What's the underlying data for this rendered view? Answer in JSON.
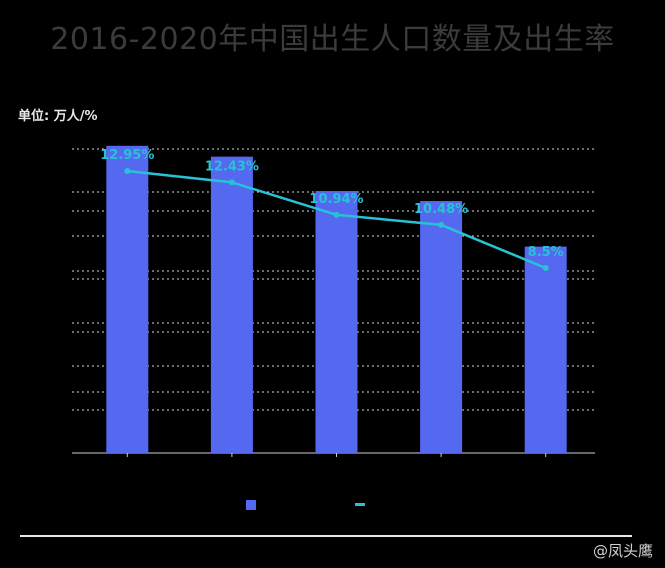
{
  "title": "2016-2020年中国出生人口数量及出生率",
  "unit_label": "单位: 万人/%",
  "watermark": "@凤头鹰",
  "colors": {
    "bar": "#5468f0",
    "line": "#27c3d4",
    "grid": "#d8d8d8"
  },
  "chart_data": {
    "type": "bar",
    "categories": [
      "",
      "",
      "",
      "",
      ""
    ],
    "series": [
      {
        "type": "bar",
        "values": [
          1786,
          1723,
          1523,
          1465,
          1200
        ]
      },
      {
        "type": "line",
        "values": [
          12.95,
          12.43,
          10.94,
          10.48,
          8.5
        ],
        "labels": [
          "12.95%",
          "12.43%",
          "10.94%",
          "10.48%",
          "8.5%"
        ]
      }
    ],
    "ylim_bar": [
      0,
      2000
    ],
    "ylim_line": [
      0,
      15
    ],
    "grid": true
  }
}
